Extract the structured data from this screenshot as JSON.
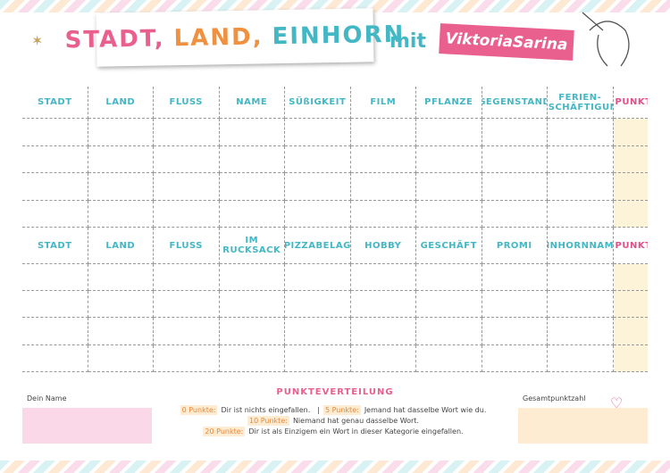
{
  "header": {
    "title_parts": [
      "STADT,",
      "LAND,",
      "EINHORN"
    ],
    "mit": "mit",
    "brand": "ViktoriaSarina"
  },
  "tables": [
    {
      "columns": [
        "STADT",
        "LAND",
        "FLUSS",
        "NAME",
        "SÜßIGKEIT",
        "FILM",
        "PFLANZE",
        "GEGENSTAND",
        "FERIEN-BESCHÄFTIGUNG",
        "PUNKTE"
      ]
    },
    {
      "columns": [
        "STADT",
        "LAND",
        "FLUSS",
        "IM RUCKSACK",
        "PIZZABELAG",
        "HOBBY",
        "GESCHÄFT",
        "PROMI",
        "EINHORNNAME",
        "PUNKTE"
      ]
    }
  ],
  "footer": {
    "name_label": "Dein Name",
    "total_label": "Gesamtpunktzahl",
    "scoring_title": "PUNKTEVERTEILUNG",
    "rules": [
      {
        "points": "0 Punkte:",
        "text": "Dir ist nichts eingefallen."
      },
      {
        "points": "5 Punkte:",
        "text": "Jemand hat dasselbe Wort wie du."
      },
      {
        "points": "10 Punkte:",
        "text": "Niemand hat genau dasselbe Wort."
      },
      {
        "points": "20 Punkte:",
        "text": "Dir ist als Einzigem ein Wort in dieser Kategorie eingefallen."
      }
    ]
  }
}
